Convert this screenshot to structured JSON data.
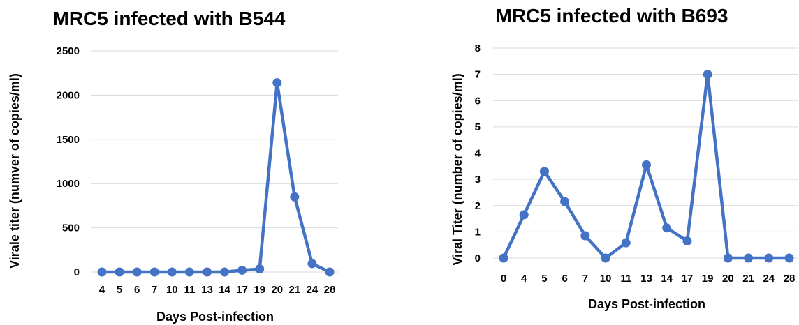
{
  "chart_data": [
    {
      "type": "line",
      "title": "MRC5 infected with B544",
      "xlabel": "Days Post-infection",
      "ylabel": "Virale titer (numver of copies/ml)",
      "categories": [
        "4",
        "5",
        "6",
        "7",
        "10",
        "11",
        "13",
        "14",
        "17",
        "19",
        "20",
        "21",
        "24",
        "28"
      ],
      "series": [
        {
          "values": [
            0,
            0,
            0,
            0,
            0,
            0,
            0,
            0,
            20,
            35,
            2140,
            850,
            95,
            0
          ]
        }
      ],
      "ylim": [
        0,
        2500
      ],
      "yticks": [
        0,
        500,
        1000,
        1500,
        2000,
        2500
      ],
      "grid": true,
      "legend": "none",
      "color": "#4472c4"
    },
    {
      "type": "line",
      "title": "MRC5 infected with B693",
      "xlabel": "Days Post-infection",
      "ylabel": "Viral Titer (number of copies/ml)",
      "categories": [
        "0",
        "4",
        "5",
        "6",
        "7",
        "10",
        "11",
        "13",
        "14",
        "17",
        "19",
        "20",
        "21",
        "24",
        "28"
      ],
      "series": [
        {
          "values": [
            0,
            1.65,
            3.3,
            2.15,
            0.85,
            0,
            0.58,
            3.55,
            1.15,
            0.65,
            7,
            0,
            0,
            0,
            0
          ]
        }
      ],
      "ylim": [
        0,
        8
      ],
      "yticks": [
        0,
        1,
        2,
        3,
        4,
        5,
        6,
        7,
        8
      ],
      "grid": true,
      "legend": "none",
      "color": "#4472c4"
    }
  ]
}
